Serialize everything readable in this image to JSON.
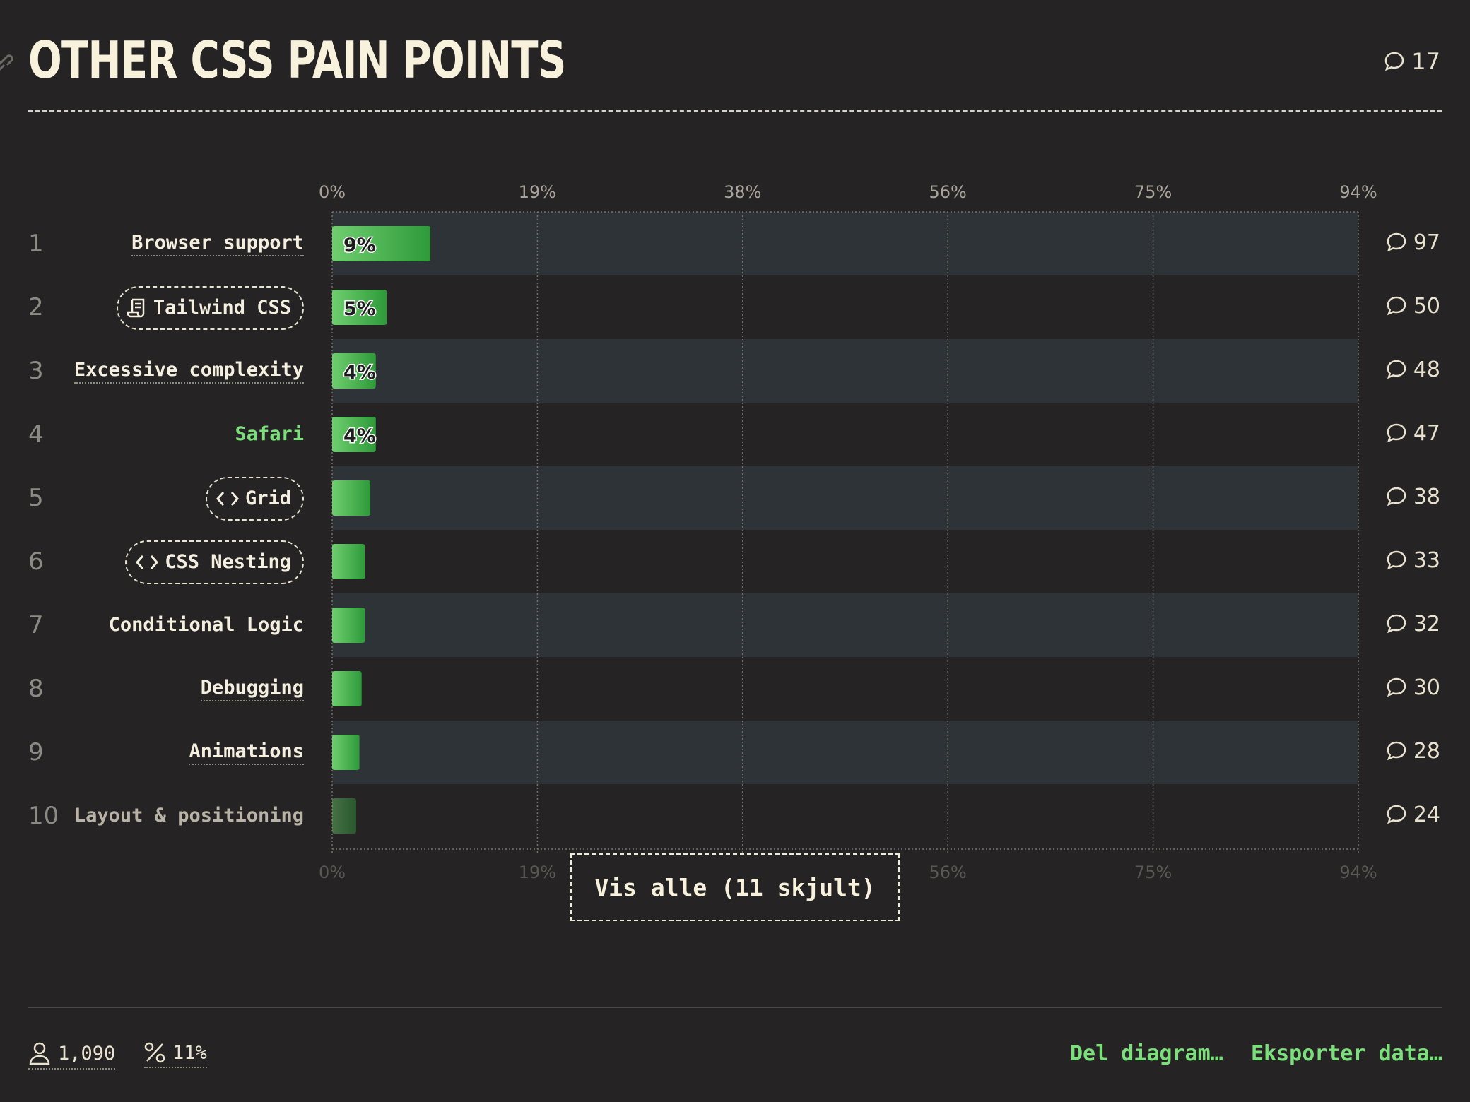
{
  "header": {
    "title": "OTHER CSS PAIN POINTS",
    "comment_count": "17"
  },
  "chart_data": {
    "type": "bar",
    "orientation": "horizontal",
    "title": "OTHER CSS PAIN POINTS",
    "xlim": [
      0,
      94
    ],
    "x_ticks": [
      "0%",
      "19%",
      "38%",
      "56%",
      "75%",
      "94%"
    ],
    "grid": true,
    "categories": [
      "Browser support",
      "Tailwind CSS",
      "Excessive complexity",
      "Safari",
      "Grid",
      "CSS Nesting",
      "Conditional Logic",
      "Debugging",
      "Animations",
      "Layout & positioning"
    ],
    "values": [
      9,
      5,
      4,
      4,
      3.5,
      3,
      3,
      2.7,
      2.5,
      2.2
    ],
    "data_labels": [
      "9%",
      "5%",
      "4%",
      "4%",
      "",
      "",
      "",
      "",
      "",
      ""
    ],
    "ranks": [
      "1",
      "2",
      "3",
      "4",
      "5",
      "6",
      "7",
      "8",
      "9",
      "10"
    ],
    "comments": [
      "97",
      "50",
      "48",
      "47",
      "38",
      "33",
      "32",
      "30",
      "28",
      "24"
    ],
    "colors": {
      "bar_start": "#6fce6f",
      "bar_end": "#2e9a3a",
      "stripe": "#2d3336",
      "label_green": "#7be07b"
    }
  },
  "show_all_label": "Vis alle (11 skjult)",
  "footer": {
    "respondents": "1,090",
    "percent": "11%",
    "share_label": "Del diagram…",
    "export_label": "Eksporter data…"
  }
}
